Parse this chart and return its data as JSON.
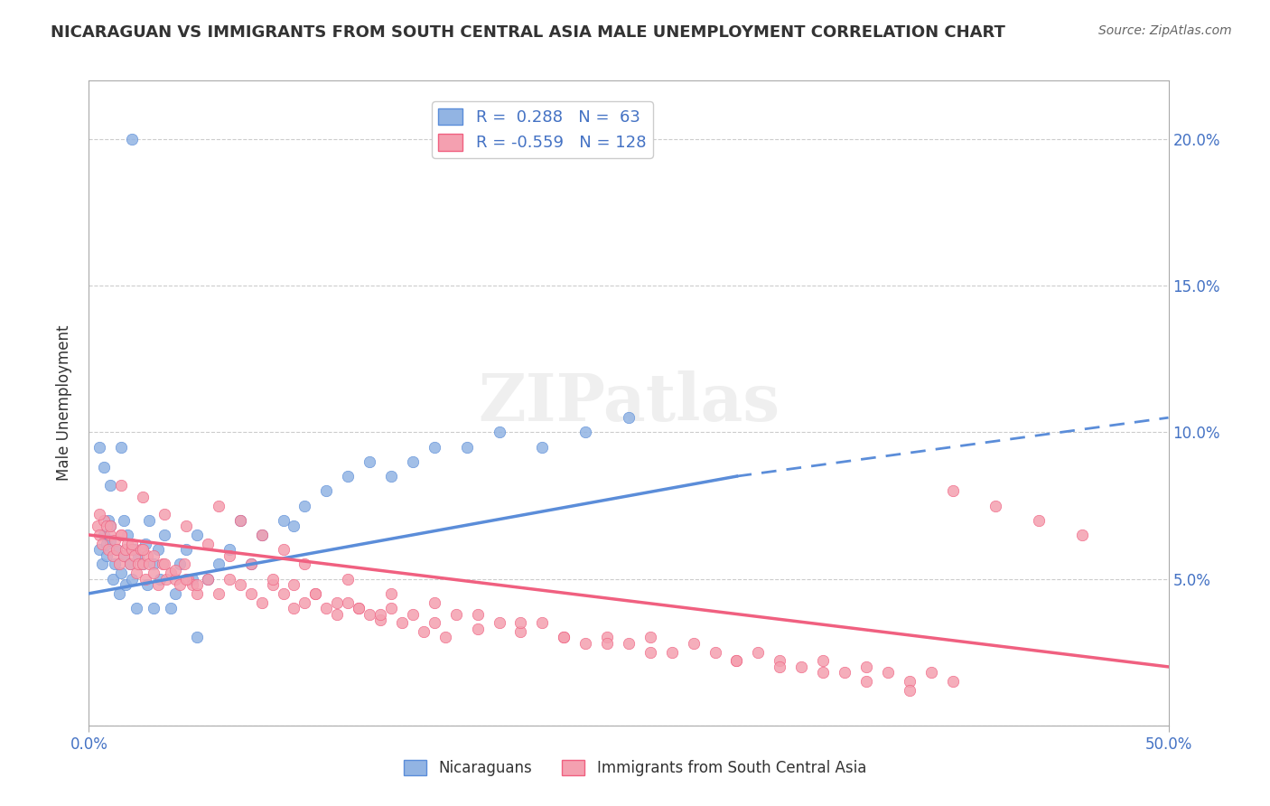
{
  "title": "NICARAGUAN VS IMMIGRANTS FROM SOUTH CENTRAL ASIA MALE UNEMPLOYMENT CORRELATION CHART",
  "source_text": "Source: ZipAtlas.com",
  "xlabel": "",
  "ylabel": "Male Unemployment",
  "xmin": 0.0,
  "xmax": 0.5,
  "ymin": 0.0,
  "ymax": 0.22,
  "yticks": [
    0.0,
    0.05,
    0.1,
    0.15,
    0.2
  ],
  "ytick_labels": [
    "",
    "5.0%",
    "10.0%",
    "15.0%",
    "20.0%"
  ],
  "xticks": [
    0.0,
    0.5
  ],
  "xtick_labels": [
    "0.0%",
    "50.0%"
  ],
  "legend_r1": "R =  0.288",
  "legend_n1": "N =  63",
  "legend_r2": "R = -0.559",
  "legend_n2": "N = 128",
  "label_blue": "Nicaraguans",
  "label_pink": "Immigrants from South Central Asia",
  "color_blue": "#92b4e3",
  "color_pink": "#f4a0b0",
  "color_blue_line": "#5b8dd9",
  "color_pink_line": "#f06080",
  "watermark": "ZIPatlas",
  "background_color": "#ffffff",
  "grid_color": "#cccccc",
  "blue_scatter_x": [
    0.005,
    0.006,
    0.007,
    0.008,
    0.008,
    0.009,
    0.01,
    0.01,
    0.011,
    0.012,
    0.013,
    0.014,
    0.015,
    0.016,
    0.016,
    0.017,
    0.018,
    0.019,
    0.02,
    0.021,
    0.022,
    0.023,
    0.025,
    0.026,
    0.027,
    0.028,
    0.03,
    0.032,
    0.033,
    0.035,
    0.038,
    0.04,
    0.042,
    0.045,
    0.048,
    0.05,
    0.055,
    0.06,
    0.065,
    0.07,
    0.075,
    0.08,
    0.09,
    0.095,
    0.1,
    0.11,
    0.12,
    0.13,
    0.14,
    0.15,
    0.16,
    0.175,
    0.19,
    0.21,
    0.23,
    0.25,
    0.005,
    0.007,
    0.01,
    0.015,
    0.02,
    0.03,
    0.05
  ],
  "blue_scatter_y": [
    0.06,
    0.055,
    0.065,
    0.058,
    0.062,
    0.07,
    0.068,
    0.063,
    0.05,
    0.055,
    0.06,
    0.045,
    0.052,
    0.058,
    0.07,
    0.048,
    0.065,
    0.055,
    0.05,
    0.06,
    0.04,
    0.058,
    0.055,
    0.062,
    0.048,
    0.07,
    0.055,
    0.06,
    0.05,
    0.065,
    0.04,
    0.045,
    0.055,
    0.06,
    0.05,
    0.065,
    0.05,
    0.055,
    0.06,
    0.07,
    0.055,
    0.065,
    0.07,
    0.068,
    0.075,
    0.08,
    0.085,
    0.09,
    0.085,
    0.09,
    0.095,
    0.095,
    0.1,
    0.095,
    0.1,
    0.105,
    0.095,
    0.088,
    0.082,
    0.095,
    0.2,
    0.04,
    0.03
  ],
  "pink_scatter_x": [
    0.004,
    0.005,
    0.006,
    0.007,
    0.008,
    0.009,
    0.01,
    0.011,
    0.012,
    0.013,
    0.014,
    0.015,
    0.016,
    0.017,
    0.018,
    0.019,
    0.02,
    0.021,
    0.022,
    0.023,
    0.024,
    0.025,
    0.026,
    0.027,
    0.028,
    0.03,
    0.032,
    0.034,
    0.036,
    0.038,
    0.04,
    0.042,
    0.044,
    0.046,
    0.048,
    0.05,
    0.055,
    0.06,
    0.065,
    0.07,
    0.075,
    0.08,
    0.085,
    0.09,
    0.095,
    0.1,
    0.105,
    0.11,
    0.115,
    0.12,
    0.125,
    0.13,
    0.135,
    0.14,
    0.15,
    0.16,
    0.17,
    0.18,
    0.19,
    0.2,
    0.21,
    0.22,
    0.23,
    0.24,
    0.25,
    0.26,
    0.27,
    0.28,
    0.29,
    0.3,
    0.31,
    0.32,
    0.33,
    0.34,
    0.35,
    0.36,
    0.37,
    0.38,
    0.39,
    0.4,
    0.005,
    0.01,
    0.015,
    0.02,
    0.025,
    0.03,
    0.035,
    0.04,
    0.045,
    0.05,
    0.06,
    0.07,
    0.08,
    0.09,
    0.1,
    0.12,
    0.14,
    0.16,
    0.18,
    0.2,
    0.22,
    0.24,
    0.26,
    0.3,
    0.32,
    0.34,
    0.36,
    0.38,
    0.4,
    0.42,
    0.44,
    0.46,
    0.015,
    0.025,
    0.035,
    0.045,
    0.055,
    0.065,
    0.075,
    0.085,
    0.095,
    0.105,
    0.115,
    0.125,
    0.135,
    0.145,
    0.155,
    0.165
  ],
  "pink_scatter_y": [
    0.068,
    0.065,
    0.062,
    0.07,
    0.068,
    0.06,
    0.065,
    0.058,
    0.063,
    0.06,
    0.055,
    0.065,
    0.058,
    0.06,
    0.062,
    0.055,
    0.06,
    0.058,
    0.052,
    0.055,
    0.06,
    0.055,
    0.05,
    0.058,
    0.055,
    0.052,
    0.048,
    0.055,
    0.05,
    0.052,
    0.05,
    0.048,
    0.055,
    0.05,
    0.048,
    0.045,
    0.05,
    0.045,
    0.05,
    0.048,
    0.045,
    0.042,
    0.048,
    0.045,
    0.04,
    0.042,
    0.045,
    0.04,
    0.038,
    0.042,
    0.04,
    0.038,
    0.036,
    0.04,
    0.038,
    0.035,
    0.038,
    0.033,
    0.035,
    0.032,
    0.035,
    0.03,
    0.028,
    0.03,
    0.028,
    0.03,
    0.025,
    0.028,
    0.025,
    0.022,
    0.025,
    0.022,
    0.02,
    0.022,
    0.018,
    0.02,
    0.018,
    0.015,
    0.018,
    0.015,
    0.072,
    0.068,
    0.065,
    0.062,
    0.06,
    0.058,
    0.055,
    0.053,
    0.05,
    0.048,
    0.075,
    0.07,
    0.065,
    0.06,
    0.055,
    0.05,
    0.045,
    0.042,
    0.038,
    0.035,
    0.03,
    0.028,
    0.025,
    0.022,
    0.02,
    0.018,
    0.015,
    0.012,
    0.08,
    0.075,
    0.07,
    0.065,
    0.082,
    0.078,
    0.072,
    0.068,
    0.062,
    0.058,
    0.055,
    0.05,
    0.048,
    0.045,
    0.042,
    0.04,
    0.038,
    0.035,
    0.032,
    0.03
  ]
}
